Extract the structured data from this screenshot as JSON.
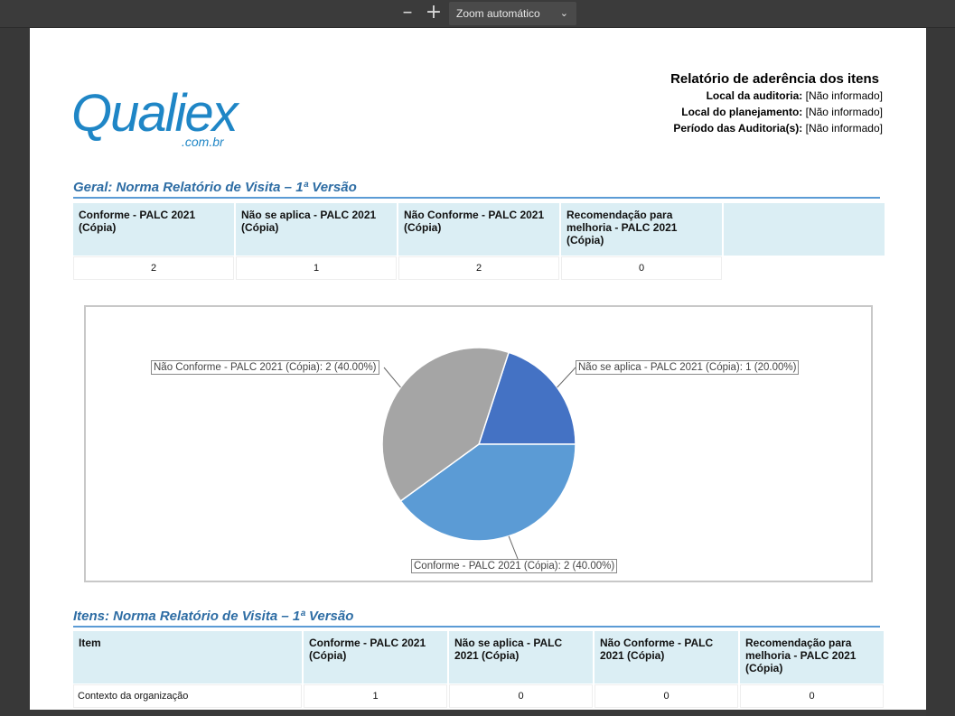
{
  "viewer": {
    "zoom_out_icon": "minus-icon",
    "zoom_in_icon": "plus-icon",
    "zoom_label": "Zoom automático"
  },
  "logo": {
    "main": "Qualiex",
    "sub": ".com.br"
  },
  "header": {
    "title": "Relatório de aderência dos itens",
    "lines": [
      {
        "label": "Local da auditoria:",
        "value": "[Não informado]"
      },
      {
        "label": "Local do planejamento:",
        "value": "[Não informado]"
      },
      {
        "label": "Período das Auditoria(s):",
        "value": "[Não informado]"
      }
    ]
  },
  "summary": {
    "title": "Geral: Norma Relatório de Visita – 1ª Versão",
    "headers": [
      "Conforme - PALC 2021 (Cópia)",
      "Não se aplica - PALC 2021 (Cópia)",
      "Não Conforme - PALC 2021 (Cópia)",
      "Recomendação para melhoria - PALC 2021 (Cópia)"
    ],
    "values": [
      "2",
      "1",
      "2",
      "0"
    ]
  },
  "chart_data": {
    "type": "pie",
    "slices": [
      {
        "name": "Não se aplica - PALC 2021 (Cópia)",
        "value": 1,
        "percent": 20.0,
        "color": "#4472c4",
        "label": "Não se aplica - PALC 2021 (Cópia): 1 (20.00%)"
      },
      {
        "name": "Conforme - PALC 2021 (Cópia)",
        "value": 2,
        "percent": 40.0,
        "color": "#5b9bd5",
        "label": "Conforme - PALC 2021 (Cópia): 2 (40.00%)"
      },
      {
        "name": "Não Conforme - PALC 2021 (Cópia)",
        "value": 2,
        "percent": 40.0,
        "color": "#a5a5a5",
        "label": "Não Conforme - PALC 2021 (Cópia): 2 (40.00%)"
      }
    ]
  },
  "items": {
    "title": "Itens: Norma Relatório de Visita – 1ª Versão",
    "headers": [
      "Item",
      "Conforme - PALC 2021 (Cópia)",
      "Não se aplica - PALC 2021 (Cópia)",
      "Não Conforme - PALC 2021 (Cópia)",
      "Recomendação para melhoria - PALC 2021 (Cópia)"
    ],
    "rows": [
      [
        "Contexto da organização",
        "1",
        "0",
        "0",
        "0"
      ]
    ]
  }
}
